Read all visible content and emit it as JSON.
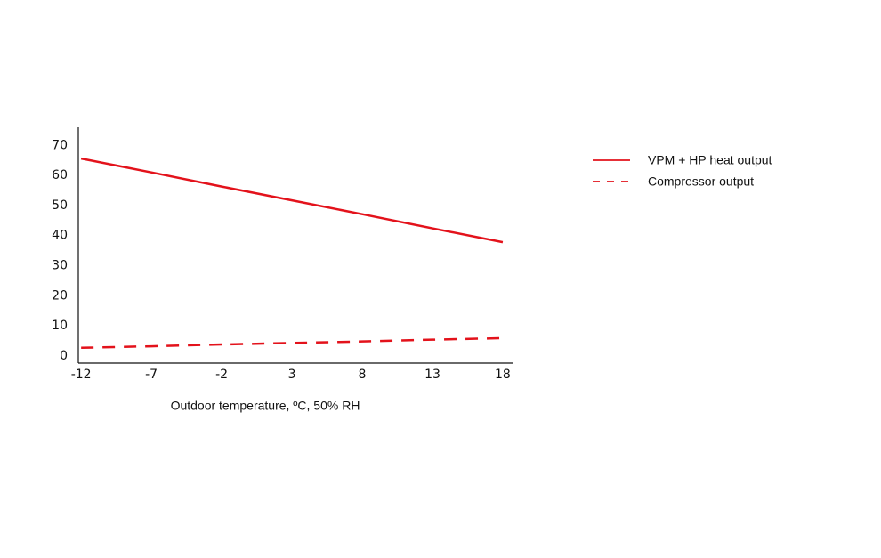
{
  "chart_data": {
    "type": "line",
    "x_label": "Outdoor temperature, ºC, 50% RH",
    "x": [
      -12,
      -7,
      -2,
      3,
      8,
      13,
      18
    ],
    "series": [
      {
        "name": "VPM + HP heat output",
        "color": "#e3121b",
        "dash": "solid",
        "values": [
          65.6,
          61.0,
          56.3,
          51.7,
          47.1,
          42.4,
          37.8
        ]
      },
      {
        "name": "Compressor output",
        "color": "#e3121b",
        "dash": "dashed",
        "values": [
          2.7,
          3.2,
          3.8,
          4.3,
          4.8,
          5.4,
          5.9
        ]
      }
    ],
    "xlim": [
      -12.2,
      18.7
    ],
    "xticks": [
      -12,
      -7,
      -2,
      3,
      8,
      13,
      18
    ],
    "ylim": [
      -2.4,
      76
    ],
    "yticks": [
      0,
      10,
      20,
      30,
      40,
      50,
      60,
      70
    ],
    "grid": false,
    "legend": "right"
  }
}
